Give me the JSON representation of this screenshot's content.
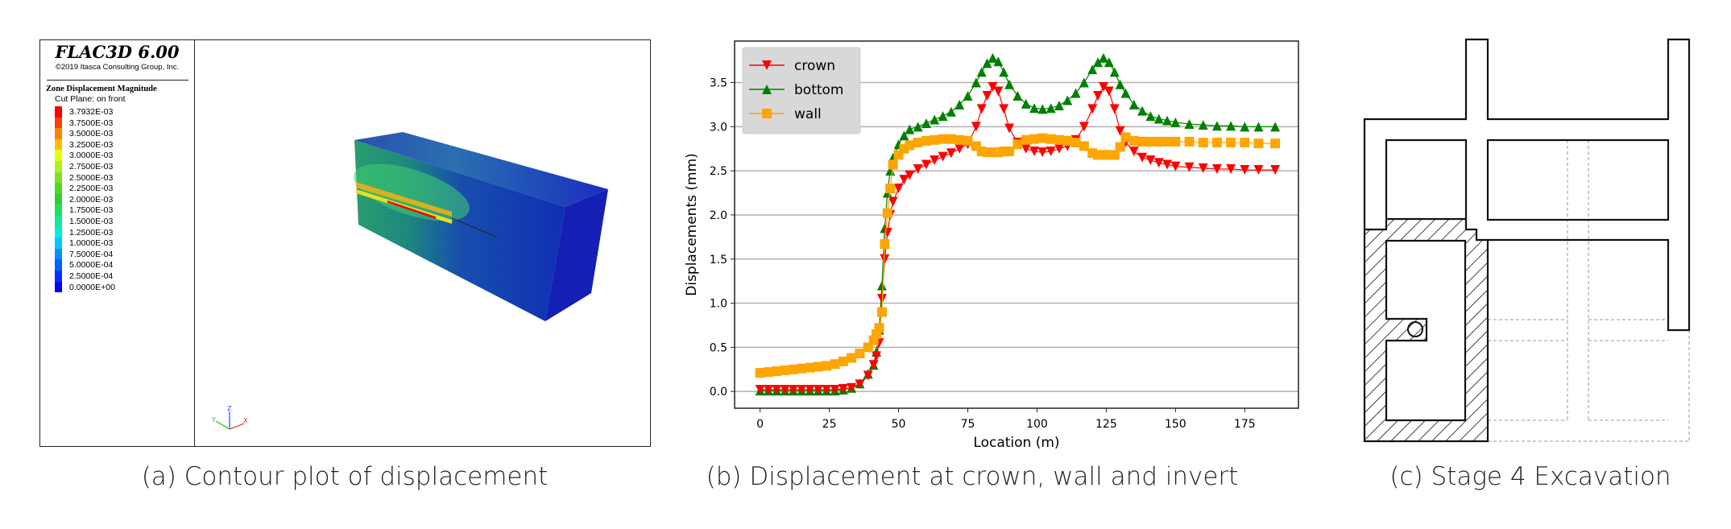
{
  "panel_a": {
    "software_title": "FLAC3D 6.00",
    "copyright": "©2019 Itasca Consulting Group, Inc.",
    "contour_title": "Zone Displacement Magnitude",
    "cut_plane": "Cut Plane: on front",
    "contour_levels": [
      "3.7932E-03",
      "3.7500E-03",
      "3.5000E-03",
      "3.2500E-03",
      "3.0000E-03",
      "2.7500E-03",
      "2.5000E-03",
      "2.2500E-03",
      "2.0000E-03",
      "1.7500E-03",
      "1.5000E-03",
      "1.2500E-03",
      "1.0000E-03",
      "7.5000E-04",
      "5.0000E-04",
      "2.5000E-04",
      "0.0000E+00"
    ],
    "contour_colors": [
      "#ff0000",
      "#ff4000",
      "#ff8000",
      "#ffbf00",
      "#e8ff00",
      "#b0f020",
      "#80e020",
      "#50d820",
      "#30d030",
      "#20e060",
      "#10e8a0",
      "#00f0e0",
      "#00c8ff",
      "#0090ff",
      "#0060ff",
      "#0030ff",
      "#0000ff"
    ],
    "axis_labels": {
      "x": "X",
      "y": "Y",
      "z": "Z"
    },
    "caption": "(a) Contour plot of displacement"
  },
  "chart_data": {
    "type": "line",
    "title": "",
    "xlabel": "Location (m)",
    "ylabel": "Displacements (mm)",
    "xlim": [
      -9.2,
      194.4
    ],
    "ylim": [
      -0.19,
      3.97
    ],
    "xticks": [
      0,
      25,
      50,
      75,
      100,
      125,
      150,
      175
    ],
    "yticks": [
      0.0,
      0.5,
      1.0,
      1.5,
      2.0,
      2.5,
      3.0,
      3.5
    ],
    "grid": "horizontal",
    "legend_position": "top-left",
    "x": [
      0,
      3,
      6,
      9,
      12,
      15,
      18,
      21,
      24,
      27,
      30,
      33,
      36,
      39,
      41,
      42,
      43,
      44,
      45,
      46,
      47,
      48,
      50,
      52,
      54,
      57,
      60,
      63,
      66,
      69,
      72,
      75,
      78,
      80,
      82,
      84,
      86,
      88,
      90,
      93,
      96,
      99,
      102,
      105,
      108,
      111,
      114,
      117,
      120,
      122,
      124,
      126,
      128,
      130,
      132,
      135,
      138,
      141,
      144,
      147,
      150,
      155,
      160,
      165,
      170,
      175,
      180,
      186
    ],
    "series": [
      {
        "name": "crown",
        "color": "#ff0000",
        "marker": "triangle-down",
        "values": [
          0.02,
          0.02,
          0.02,
          0.02,
          0.02,
          0.02,
          0.02,
          0.02,
          0.02,
          0.02,
          0.03,
          0.04,
          0.08,
          0.18,
          0.3,
          0.4,
          0.55,
          1.05,
          1.5,
          1.8,
          2.0,
          2.15,
          2.3,
          2.4,
          2.45,
          2.52,
          2.57,
          2.62,
          2.66,
          2.7,
          2.75,
          2.8,
          3.0,
          3.2,
          3.35,
          3.45,
          3.4,
          3.2,
          2.98,
          2.82,
          2.75,
          2.72,
          2.71,
          2.72,
          2.75,
          2.78,
          2.85,
          3.0,
          3.2,
          3.35,
          3.45,
          3.4,
          3.2,
          2.95,
          2.82,
          2.72,
          2.65,
          2.62,
          2.59,
          2.57,
          2.55,
          2.54,
          2.53,
          2.52,
          2.52,
          2.51,
          2.51,
          2.51
        ]
      },
      {
        "name": "bottom",
        "color": "#008000",
        "marker": "triangle-up",
        "values": [
          0.01,
          0.01,
          0.01,
          0.01,
          0.01,
          0.01,
          0.01,
          0.01,
          0.01,
          0.01,
          0.02,
          0.04,
          0.09,
          0.2,
          0.3,
          0.45,
          0.7,
          1.2,
          1.85,
          2.25,
          2.5,
          2.65,
          2.8,
          2.9,
          2.97,
          3.0,
          3.04,
          3.08,
          3.12,
          3.17,
          3.25,
          3.35,
          3.5,
          3.62,
          3.72,
          3.78,
          3.74,
          3.62,
          3.48,
          3.35,
          3.26,
          3.21,
          3.2,
          3.21,
          3.24,
          3.3,
          3.38,
          3.5,
          3.65,
          3.73,
          3.78,
          3.73,
          3.62,
          3.48,
          3.38,
          3.25,
          3.18,
          3.12,
          3.09,
          3.07,
          3.05,
          3.03,
          3.02,
          3.01,
          3.01,
          3.0,
          3.0,
          3.0
        ]
      },
      {
        "name": "wall",
        "color": "#ffa500",
        "marker": "square",
        "values": [
          0.21,
          0.22,
          0.23,
          0.24,
          0.25,
          0.26,
          0.27,
          0.28,
          0.29,
          0.31,
          0.34,
          0.38,
          0.43,
          0.5,
          0.58,
          0.65,
          0.72,
          0.9,
          1.67,
          2.02,
          2.3,
          2.57,
          2.68,
          2.75,
          2.79,
          2.82,
          2.84,
          2.85,
          2.86,
          2.86,
          2.85,
          2.84,
          2.78,
          2.72,
          2.71,
          2.71,
          2.71,
          2.72,
          2.72,
          2.8,
          2.85,
          2.86,
          2.87,
          2.86,
          2.85,
          2.84,
          2.82,
          2.78,
          2.7,
          2.68,
          2.68,
          2.68,
          2.68,
          2.77,
          2.88,
          2.84,
          2.83,
          2.83,
          2.83,
          2.83,
          2.83,
          2.83,
          2.82,
          2.82,
          2.82,
          2.82,
          2.81,
          2.81
        ]
      }
    ],
    "caption": "(b) Displacement at crown, wall and invert"
  },
  "panel_c": {
    "caption": "(c) Stage 4 Excavation"
  }
}
